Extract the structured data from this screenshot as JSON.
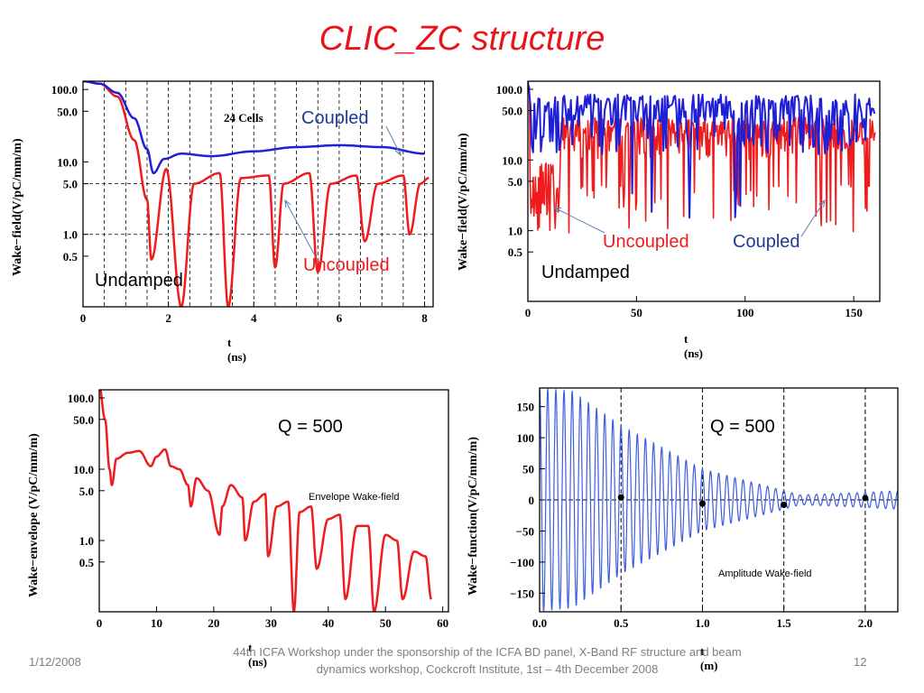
{
  "slide": {
    "title": "CLIC_ZC structure",
    "footer_date": "1/12/2008",
    "footer_text_1": "44th ICFA Workshop under the sponsorship of the ICFA BD panel,  X-Band RF structure and beam",
    "footer_text_2": "dynamics workshop,  Cockcroft Institute,  1st  –  4th December  2008",
    "page_number": "12"
  },
  "colors": {
    "coupled": "#1f1fd6",
    "uncoupled": "#ee1c1c",
    "sine": "#3d5ee0",
    "title": "#e8141c"
  },
  "chart_data": [
    {
      "type": "line",
      "ylabel": "Wake−field(V/pC/mm/m)",
      "xlabel": "t (ns)",
      "x_ticks": [
        "0",
        "2",
        "4",
        "6",
        "8"
      ],
      "y_ticks": [
        "100.0",
        "50.0",
        "10.0",
        "5.0",
        "1.0",
        "0.5"
      ],
      "xlim": [
        0,
        8.2
      ],
      "ylim": [
        0.1,
        130
      ],
      "yscale": "log",
      "vertical_dashed_lines_ns": [
        0.5,
        1.0,
        1.5,
        2.0,
        2.5,
        3.0,
        3.5,
        4.0,
        4.5,
        5.0,
        5.5,
        6.0,
        6.5,
        7.0,
        7.5,
        8.0
      ],
      "horizontal_dashed_lines": [
        5.0,
        1.0
      ],
      "inset_label": "24 Cells",
      "annotations": {
        "coupled": "Coupled",
        "uncoupled": "Uncoupled",
        "undamped": "Undamped"
      },
      "series": [
        {
          "name": "Coupled",
          "x": [
            0,
            0.4,
            0.8,
            1.2,
            1.5,
            1.65,
            1.9,
            2.3,
            3,
            4,
            5,
            6,
            7,
            8
          ],
          "y": [
            130,
            120,
            90,
            40,
            15,
            7,
            11,
            13,
            12,
            14,
            16,
            17,
            16,
            13
          ]
        },
        {
          "name": "Uncoupled",
          "x": [
            0,
            0.4,
            0.8,
            1.2,
            1.5,
            1.6,
            1.95,
            2.3,
            2.6,
            3.2,
            3.4,
            3.7,
            4.35,
            4.5,
            4.7,
            5.3,
            5.5,
            5.8,
            6.4,
            6.6,
            6.9,
            7.5,
            7.65,
            7.9,
            8.1
          ],
          "y": [
            130,
            120,
            80,
            20,
            3,
            0.45,
            8,
            0.1,
            5,
            7,
            0.1,
            6,
            6.5,
            0.35,
            5,
            7,
            0.3,
            5,
            6.5,
            0.8,
            5,
            6.5,
            1,
            5,
            6
          ]
        }
      ]
    },
    {
      "type": "line",
      "ylabel": "Wake−field(V/pC/mm/m)",
      "xlabel": "t (ns)",
      "x_ticks": [
        "0",
        "50",
        "100",
        "150"
      ],
      "y_ticks": [
        "100.0",
        "50.0",
        "10.0",
        "5.0",
        "1.0",
        "0.5"
      ],
      "xlim": [
        0,
        162
      ],
      "ylim": [
        0.1,
        130
      ],
      "yscale": "log",
      "annotations": {
        "uncoupled": "Uncoupled",
        "coupled": "Coupled",
        "undamped": "Undamped"
      },
      "series": [
        {
          "name": "Coupled",
          "x_range": [
            0,
            160
          ],
          "typical_y": [
            15,
            90
          ],
          "start_y": 130
        },
        {
          "name": "Uncoupled",
          "x_range": [
            0,
            160
          ],
          "typical_y": [
            3,
            50
          ],
          "dense_low_region_ns": [
            0,
            15
          ]
        }
      ]
    },
    {
      "type": "line",
      "ylabel": "Wake−envelope (V/pC/mm/m)",
      "xlabel": "t (ns)",
      "x_ticks": [
        "0",
        "10",
        "20",
        "30",
        "40",
        "50",
        "60"
      ],
      "y_ticks": [
        "100.0",
        "50.0",
        "10.0",
        "5.0",
        "1.0",
        "0.5"
      ],
      "xlim": [
        0,
        61
      ],
      "ylim": [
        0.1,
        130
      ],
      "yscale": "log",
      "annotations": {
        "q": "Q = 500",
        "label": "Envelope Wake-field"
      },
      "series": [
        {
          "name": "Envelope",
          "x": [
            0,
            1,
            1.8,
            2.2,
            3,
            5,
            7,
            9,
            10,
            11.5,
            12.5,
            14,
            15.5,
            16,
            17,
            19,
            21,
            21.5,
            23,
            25,
            25.5,
            27,
            29,
            29.5,
            31,
            33,
            34,
            35,
            37,
            38,
            40,
            42,
            43,
            45,
            47,
            48,
            50,
            52,
            53,
            55,
            57,
            58
          ],
          "y": [
            150,
            50,
            10,
            6,
            14,
            17,
            18,
            11,
            15,
            19,
            11,
            10,
            6,
            3,
            7.5,
            5,
            1.2,
            3,
            6,
            4,
            1,
            3.5,
            4.5,
            0.6,
            3,
            3.5,
            0.1,
            2.5,
            3,
            0.4,
            2,
            2.3,
            0.15,
            1.6,
            1.6,
            0.1,
            1.2,
            1,
            0.15,
            0.7,
            0.6,
            0.15
          ]
        }
      ]
    },
    {
      "type": "line",
      "ylabel": "Wake−function(V/pC/mm/m)",
      "xlabel": "t (m)",
      "x_ticks": [
        "0.0",
        "0.5",
        "1.0",
        "1.5",
        "2.0"
      ],
      "y_ticks": [
        "150",
        "100",
        "50",
        "0",
        "−50",
        "−100",
        "−150"
      ],
      "xlim": [
        0,
        2.2
      ],
      "ylim": [
        -180,
        180
      ],
      "vertical_dashed_lines_m": [
        0.5,
        1.0,
        1.5,
        2.0
      ],
      "horizontal_dashed_lines": [
        0
      ],
      "markers": {
        "x": [
          0.5,
          1.0,
          1.5,
          2.0
        ],
        "y": [
          4,
          -6,
          -8,
          3
        ]
      },
      "annotations": {
        "q": "Q = 500",
        "label": "Amplitude  Wake-field"
      },
      "series": [
        {
          "name": "Wake function",
          "oscillation_period_m": 0.05,
          "amplitude_envelope": {
            "x": [
              0,
              0.2,
              0.5,
              1.0,
              1.5,
              1.6,
              2.0,
              2.2
            ],
            "y": [
              180,
              175,
              120,
              50,
              15,
              8,
              12,
              15
            ]
          }
        }
      ]
    }
  ]
}
